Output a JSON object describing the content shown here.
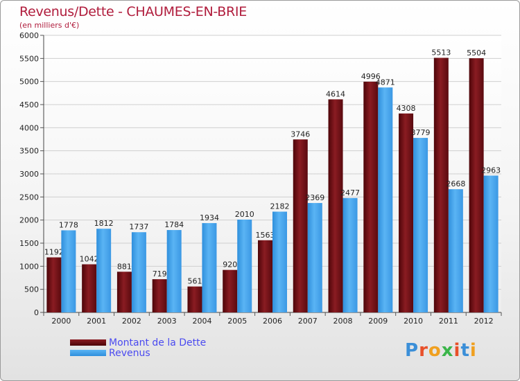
{
  "title": "Revenus/Dette - CHAUMES-EN-BRIE",
  "subtitle": "(en milliers d'€)",
  "colors": {
    "series_dette": "#6b0b12",
    "series_revenus": "#3f9fe8",
    "title": "#b01c3c"
  },
  "legend": [
    {
      "label": "Montant de la Dette",
      "color": "#6b0b12"
    },
    {
      "label": "Revenus",
      "color": "#3f9fe8"
    }
  ],
  "logo": {
    "text": "Proxiti"
  },
  "chart_data": {
    "type": "bar",
    "title": "Revenus/Dette - CHAUMES-EN-BRIE",
    "subtitle": "(en milliers d'€)",
    "categories": [
      "2000",
      "2001",
      "2002",
      "2003",
      "2004",
      "2005",
      "2006",
      "2007",
      "2008",
      "2009",
      "2010",
      "2011",
      "2012"
    ],
    "series": [
      {
        "name": "Montant de la Dette",
        "values": [
          1192,
          1042,
          881,
          719,
          561,
          920,
          1563,
          3746,
          4614,
          4996,
          4308,
          5513,
          5504
        ]
      },
      {
        "name": "Revenus",
        "values": [
          1778,
          1812,
          1737,
          1784,
          1934,
          2010,
          2182,
          2369,
          2477,
          4871,
          3779,
          2668,
          2963
        ]
      }
    ],
    "ylim": [
      0,
      6000
    ],
    "yticks": [
      0,
      500,
      1000,
      1500,
      2000,
      2500,
      3000,
      3500,
      4000,
      4500,
      5000,
      5500,
      6000
    ],
    "grid": true,
    "legend_position": "bottom-left"
  }
}
